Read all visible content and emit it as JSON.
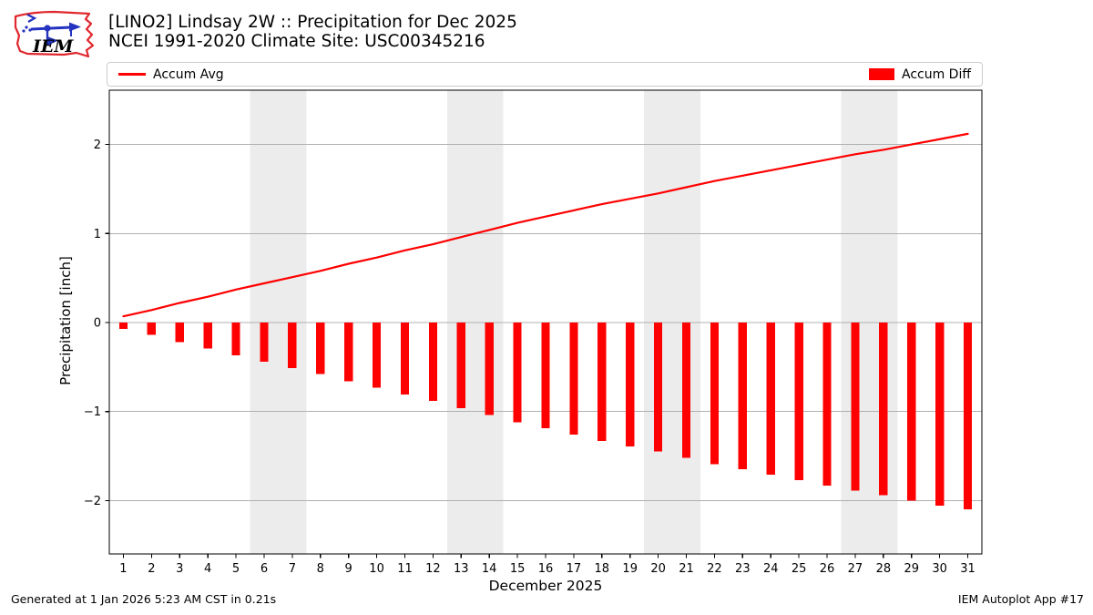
{
  "header": {
    "title_line1": "[LINO2] Lindsay 2W :: Precipitation for Dec 2025",
    "title_line2": "NCEI 1991-2020 Climate Site: USC00345216",
    "logo_text": "IEM"
  },
  "legend": {
    "avg_label": "Accum Avg",
    "diff_label": "Accum Diff"
  },
  "footer": {
    "generated": "Generated at 1 Jan 2026 5:23 AM CST in 0.21s",
    "app": "IEM Autoplot App #17"
  },
  "chart_data": {
    "type": "line+bar",
    "title": "[LINO2] Lindsay 2W :: Precipitation for Dec 2025",
    "subtitle": "NCEI 1991-2020 Climate Site: USC00345216",
    "xlabel": "December 2025",
    "ylabel": "Precipitation [inch]",
    "x": [
      1,
      2,
      3,
      4,
      5,
      6,
      7,
      8,
      9,
      10,
      11,
      12,
      13,
      14,
      15,
      16,
      17,
      18,
      19,
      20,
      21,
      22,
      23,
      24,
      25,
      26,
      27,
      28,
      29,
      30,
      31
    ],
    "series": [
      {
        "name": "Accum Avg",
        "kind": "line",
        "color": "#ff0000",
        "values": [
          0.07,
          0.14,
          0.22,
          0.29,
          0.37,
          0.44,
          0.51,
          0.58,
          0.66,
          0.73,
          0.81,
          0.88,
          0.96,
          1.04,
          1.12,
          1.19,
          1.26,
          1.33,
          1.39,
          1.45,
          1.52,
          1.59,
          1.65,
          1.71,
          1.77,
          1.83,
          1.89,
          1.94,
          2.0,
          2.06,
          2.12
        ]
      },
      {
        "name": "Accum Diff",
        "kind": "bar",
        "color": "#ff0000",
        "values": [
          -0.07,
          -0.14,
          -0.22,
          -0.29,
          -0.37,
          -0.44,
          -0.51,
          -0.58,
          -0.66,
          -0.73,
          -0.81,
          -0.88,
          -0.96,
          -1.04,
          -1.12,
          -1.19,
          -1.26,
          -1.33,
          -1.39,
          -1.45,
          -1.52,
          -1.59,
          -1.65,
          -1.71,
          -1.77,
          -1.83,
          -1.89,
          -1.94,
          -2.0,
          -2.06,
          -2.1
        ]
      }
    ],
    "xlim": [
      0.5,
      31.5
    ],
    "ylim": [
      -2.6,
      2.61
    ],
    "yticks": [
      -2,
      -1,
      0,
      1,
      2
    ],
    "ytick_labels": [
      "−2",
      "−1",
      "0",
      "1",
      "2"
    ],
    "xtick_labels": [
      "1",
      "2",
      "3",
      "4",
      "5",
      "6",
      "7",
      "8",
      "9",
      "10",
      "11",
      "12",
      "13",
      "14",
      "15",
      "16",
      "17",
      "18",
      "19",
      "20",
      "21",
      "22",
      "23",
      "24",
      "25",
      "26",
      "27",
      "28",
      "29",
      "30",
      "31"
    ],
    "weekend_bands": [
      [
        5.5,
        7.5
      ],
      [
        12.5,
        14.5
      ],
      [
        19.5,
        21.5
      ],
      [
        26.5,
        28.5
      ]
    ],
    "grid": true,
    "grid_color": "#b0b0b0",
    "band_color": "#ececec",
    "spine_color": "#000000",
    "bar_width_days": 0.3,
    "legend_position": "top, full-width, avg left / diff right"
  }
}
